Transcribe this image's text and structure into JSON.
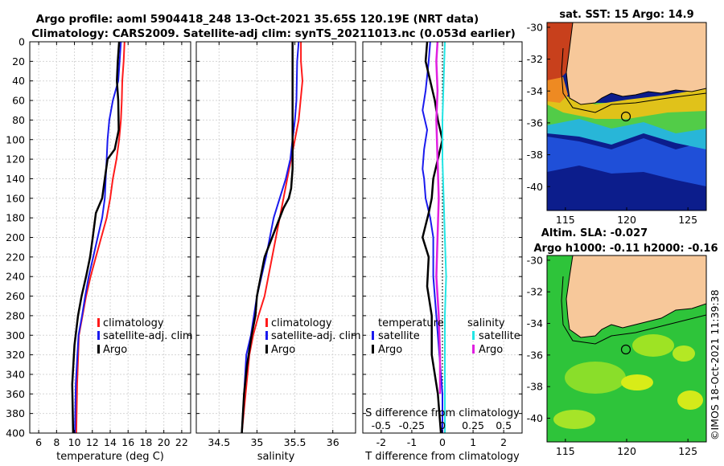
{
  "header": {
    "title_line1": "Argo profile: aoml 5904418_248 13-Oct-2021 35.65S 120.19E (NRT data)",
    "title_line2": "Climatology: CARS2009. Satellite-adj clim: synTS_20211013.nc (0.053d earlier)"
  },
  "colors": {
    "climatology": "#ff1a1a",
    "satellite": "#1a1aee",
    "argo": "#000000",
    "salinity_satellite": "#22e5e5",
    "salinity_argo": "#e020e0",
    "land": "#f7c89a"
  },
  "legend_temp": [
    "climatology",
    "satellite-adj. clim",
    "Argo"
  ],
  "legend_sal": [
    "climatology",
    "satellite-adj. clim",
    "Argo"
  ],
  "legend_diff": {
    "temp_head": "temperature",
    "sal_head": "salinity",
    "temp_sat": "satellite",
    "temp_argo": "Argo",
    "sal_sat": "satellite",
    "sal_argo": "Argo"
  },
  "chart_data": [
    {
      "type": "line",
      "title": "",
      "xlabel": "temperature (deg C)",
      "ylabel": "",
      "xlim": [
        5,
        23
      ],
      "ylim": [
        400,
        0
      ],
      "xticks": [
        6,
        8,
        10,
        12,
        14,
        16,
        18,
        20,
        22
      ],
      "yticks": [
        0,
        20,
        40,
        60,
        80,
        100,
        120,
        140,
        160,
        180,
        200,
        220,
        240,
        260,
        280,
        300,
        320,
        340,
        360,
        380,
        400
      ],
      "series": [
        {
          "name": "climatology",
          "x": [
            15.6,
            15.5,
            15.35,
            15.3,
            15.2,
            15.0,
            14.7,
            14.3,
            14.0,
            13.6,
            13.0,
            12.4,
            11.8,
            11.3,
            10.9,
            10.5,
            10.3,
            10.2
          ],
          "y": [
            0,
            20,
            40,
            60,
            80,
            100,
            120,
            140,
            160,
            180,
            200,
            220,
            240,
            260,
            280,
            300,
            350,
            400
          ]
        },
        {
          "name": "satellite-adj. clim",
          "x": [
            15.2,
            15.05,
            14.9,
            14.3,
            13.9,
            13.7,
            13.6,
            13.5,
            13.4,
            13.1,
            12.6,
            12.1,
            11.6,
            11.2,
            10.85,
            10.45,
            10.15,
            10.05
          ],
          "y": [
            0,
            20,
            40,
            60,
            80,
            100,
            120,
            140,
            160,
            180,
            200,
            220,
            240,
            260,
            280,
            300,
            350,
            400
          ]
        },
        {
          "name": "Argo",
          "x": [
            15.0,
            14.85,
            14.75,
            14.9,
            14.95,
            14.5,
            13.7,
            13.4,
            13.1,
            12.4,
            12.05,
            11.75,
            11.3,
            10.8,
            10.4,
            10.0,
            9.75,
            9.85
          ],
          "y": [
            0,
            20,
            40,
            60,
            90,
            110,
            120,
            140,
            160,
            175,
            200,
            220,
            240,
            260,
            280,
            310,
            350,
            400
          ]
        }
      ]
    },
    {
      "type": "line",
      "title": "",
      "xlabel": "salinity",
      "ylabel": "",
      "xlim": [
        34.2,
        36.3
      ],
      "ylim": [
        400,
        0
      ],
      "xticks": [
        34.5,
        35,
        35.5,
        36
      ],
      "series": [
        {
          "name": "climatology",
          "x": [
            35.58,
            35.58,
            35.6,
            35.55,
            35.5,
            35.45,
            35.4,
            35.35,
            35.3,
            35.2,
            35.1,
            35.02,
            34.95,
            34.9,
            34.85,
            34.8
          ],
          "y": [
            0,
            20,
            40,
            80,
            100,
            120,
            140,
            160,
            180,
            220,
            260,
            280,
            300,
            320,
            360,
            400
          ]
        },
        {
          "name": "satellite-adj. clim",
          "x": [
            35.55,
            35.53,
            35.52,
            35.5,
            35.47,
            35.44,
            35.38,
            35.3,
            35.22,
            35.12,
            35.0,
            34.92,
            34.86,
            34.83,
            34.8
          ],
          "y": [
            0,
            20,
            60,
            80,
            100,
            120,
            140,
            160,
            180,
            220,
            260,
            300,
            320,
            360,
            400
          ]
        },
        {
          "name": "Argo",
          "x": [
            35.47,
            35.47,
            35.47,
            35.47,
            35.47,
            35.45,
            35.42,
            35.35,
            35.2,
            35.1,
            35.05,
            35.0,
            34.98,
            34.93,
            34.87,
            34.83,
            34.8
          ],
          "y": [
            0,
            20,
            60,
            100,
            130,
            150,
            160,
            170,
            200,
            220,
            240,
            260,
            280,
            300,
            330,
            360,
            400
          ]
        }
      ]
    },
    {
      "type": "line",
      "title": "",
      "xlabel": "T difference from climatology",
      "xlabel_top": "S difference from climatology",
      "xlim": [
        -2.6,
        2.6
      ],
      "ylim": [
        400,
        0
      ],
      "xticks": [
        -2,
        -1,
        0,
        1,
        2
      ],
      "xticks_s": [
        "-0.5",
        "-0.25",
        "0",
        "0.25",
        "0.5"
      ],
      "series": [
        {
          "name": "temperature satellite",
          "x": [
            -0.4,
            -0.45,
            -0.55,
            -0.65,
            -0.5,
            -0.6,
            -0.65,
            -0.6,
            -0.55,
            -0.4,
            -0.3,
            -0.3,
            -0.2,
            -0.1,
            0.0,
            0.0
          ],
          "y": [
            0,
            20,
            50,
            70,
            90,
            110,
            130,
            140,
            160,
            180,
            200,
            240,
            280,
            320,
            360,
            400
          ]
        },
        {
          "name": "temperature Argo",
          "x": [
            -0.5,
            -0.55,
            -0.25,
            -0.15,
            0.0,
            -0.15,
            -0.3,
            -0.35,
            -0.45,
            -0.65,
            -0.45,
            -0.5,
            -0.35,
            -0.35,
            -0.15,
            -0.05
          ],
          "y": [
            0,
            20,
            60,
            80,
            100,
            120,
            140,
            160,
            175,
            200,
            220,
            250,
            280,
            320,
            360,
            400
          ]
        },
        {
          "name": "salinity satellite",
          "x": [
            0.02,
            0.01,
            0.0,
            0.0,
            0.01,
            0.02,
            0.03,
            0.02,
            0.02,
            0.02,
            0.02
          ],
          "y": [
            0,
            40,
            80,
            120,
            160,
            200,
            240,
            280,
            320,
            360,
            400
          ]
        },
        {
          "name": "salinity Argo",
          "x": [
            -0.04,
            -0.05,
            -0.04,
            -0.05,
            -0.04,
            -0.03,
            -0.04,
            -0.05,
            -0.03,
            -0.02,
            -0.02
          ],
          "y": [
            0,
            20,
            50,
            80,
            120,
            160,
            200,
            240,
            280,
            320,
            360
          ]
        }
      ]
    },
    {
      "type": "heatmap",
      "title": "sat. SST: 15 Argo: 14.9",
      "xlim": [
        113.5,
        126.5
      ],
      "ylim": [
        -41.5,
        -29.7
      ],
      "xticks": [
        115,
        120,
        125
      ],
      "yticks": [
        -30,
        -32,
        -34,
        -36,
        -38,
        -40
      ],
      "argo_position": {
        "lon": 120.19,
        "lat": -35.65
      }
    },
    {
      "type": "heatmap",
      "title": "Altim. SLA: -0.027",
      "subtitle": "Argo h1000: -0.11 h2000: -0.16",
      "xlim": [
        113.5,
        126.5
      ],
      "ylim": [
        -41.5,
        -29.7
      ],
      "xticks": [
        115,
        120,
        125
      ],
      "yticks": [
        -30,
        -32,
        -34,
        -36,
        -38,
        -40
      ],
      "argo_position": {
        "lon": 120.19,
        "lat": -35.65
      }
    }
  ],
  "footer": {
    "stamp": "©IMOS 18-Oct-2021 11:39:38"
  }
}
